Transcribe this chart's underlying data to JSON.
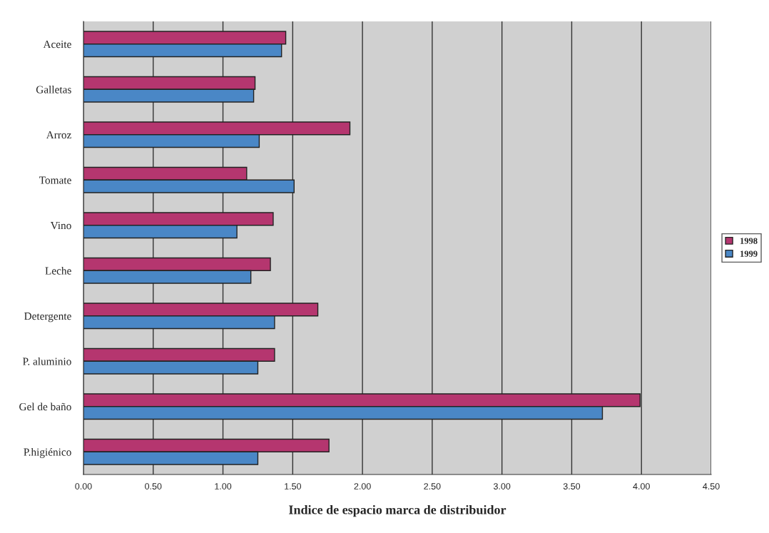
{
  "chart_data": {
    "type": "bar",
    "orientation": "horizontal",
    "xlabel": "Indice de espacio marca de distribuidor",
    "categories": [
      "Aceite",
      "Galletas",
      "Arroz",
      "Tomate",
      "Vino",
      "Leche",
      "Detergente",
      "P. aluminio",
      "Gel de baño",
      "P.higiénico"
    ],
    "series": [
      {
        "name": "1998",
        "color": "#b5366f",
        "values": [
          1.45,
          1.23,
          1.91,
          1.17,
          1.36,
          1.34,
          1.68,
          1.37,
          3.99,
          1.76
        ]
      },
      {
        "name": "1999",
        "color": "#4a87c6",
        "values": [
          1.42,
          1.22,
          1.26,
          1.51,
          1.1,
          1.2,
          1.37,
          1.25,
          3.72,
          1.25
        ]
      }
    ],
    "xlim": [
      0,
      4.5
    ],
    "xticks": [
      {
        "value": 0,
        "label": "0.00"
      },
      {
        "value": 0.5,
        "label": "0.50"
      },
      {
        "value": 1,
        "label": "1.00"
      },
      {
        "value": 1.5,
        "label": "1.50"
      },
      {
        "value": 2,
        "label": "2.00"
      },
      {
        "value": 2.5,
        "label": "2.50"
      },
      {
        "value": 3,
        "label": "3.00"
      },
      {
        "value": 3.5,
        "label": "3.50"
      },
      {
        "value": 4,
        "label": "4.00"
      },
      {
        "value": 4.5,
        "label": "4.50"
      }
    ],
    "grid": "x",
    "legend": "right"
  }
}
